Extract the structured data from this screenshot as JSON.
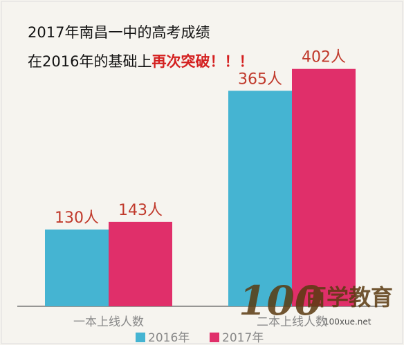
{
  "chart_data": {
    "type": "bar",
    "title": "2017年南昌一中的高考成绩",
    "subtitle": "在2016年的基础上",
    "subtitle_emphasis": "再次突破！！！",
    "categories": [
      "一本上线人数",
      "二本上线人数"
    ],
    "series": [
      {
        "name": "2016年",
        "color": "#45b4d2",
        "values": [
          130,
          365
        ],
        "value_labels": [
          "130人",
          "365人"
        ]
      },
      {
        "name": "2017年",
        "color": "#e02f6a",
        "values": [
          143,
          402
        ],
        "value_labels": [
          "143人",
          "402人"
        ]
      }
    ],
    "ylim": [
      0,
      500
    ],
    "watermark": {
      "number": "100",
      "text": "百学教育",
      "url": "100xue.net"
    }
  }
}
